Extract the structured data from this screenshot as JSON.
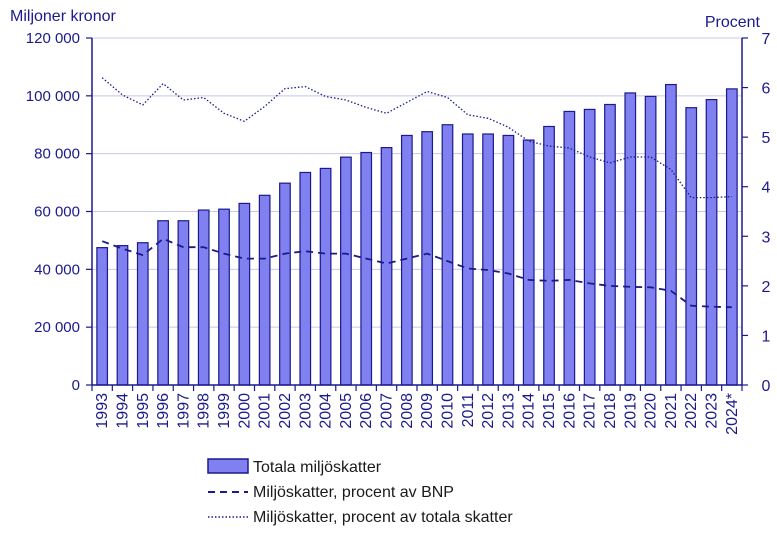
{
  "chart_data": {
    "type": "bar",
    "left_axis_title": "Miljoner kronor",
    "right_axis_title": "Procent",
    "categories": [
      "1993",
      "1994",
      "1995",
      "1996",
      "1997",
      "1998",
      "1999",
      "2000",
      "2001",
      "2002",
      "2003",
      "2004",
      "2005",
      "2006",
      "2007",
      "2008",
      "2009",
      "2010",
      "2011",
      "2012",
      "2013",
      "2014",
      "2015",
      "2016",
      "2017",
      "2018",
      "2019",
      "2020",
      "2021",
      "2022",
      "2023",
      "2024*"
    ],
    "y_left": {
      "min": 0,
      "max": 120000,
      "ticks": [
        0,
        20000,
        40000,
        60000,
        80000,
        100000,
        120000
      ],
      "tick_labels": [
        "0",
        "20 000",
        "40 000",
        "60 000",
        "80 000",
        "100 000",
        "120 000"
      ]
    },
    "y_right": {
      "min": 0,
      "max": 7,
      "ticks": [
        0,
        1,
        2,
        3,
        4,
        5,
        6,
        7
      ],
      "tick_labels": [
        "0",
        "1",
        "2",
        "3",
        "4",
        "5",
        "6",
        "7"
      ]
    },
    "grid": true,
    "legend_position": "bottom",
    "series": [
      {
        "name": "Totala miljöskatter",
        "kind": "bar",
        "axis": "left",
        "color": "#8080f0",
        "stroke": "#1a1a8c",
        "values": [
          47500,
          48200,
          49200,
          56800,
          56800,
          60500,
          60800,
          62800,
          65600,
          69800,
          73500,
          74900,
          78800,
          80400,
          82100,
          86300,
          87600,
          90000,
          86800,
          86800,
          86300,
          84700,
          89400,
          94600,
          95300,
          97000,
          101000,
          99800,
          103900,
          95900,
          98700,
          102400
        ]
      },
      {
        "name": "Miljöskatter, procent av BNP",
        "kind": "line",
        "style": "dashed",
        "axis": "right",
        "color": "#1a1a8c",
        "values": [
          2.9,
          2.75,
          2.62,
          2.95,
          2.78,
          2.78,
          2.65,
          2.55,
          2.55,
          2.65,
          2.7,
          2.65,
          2.65,
          2.55,
          2.45,
          2.55,
          2.65,
          2.5,
          2.35,
          2.32,
          2.25,
          2.12,
          2.1,
          2.12,
          2.05,
          2.0,
          1.98,
          1.97,
          1.9,
          1.6,
          1.58,
          1.57
        ]
      },
      {
        "name": "Miljöskatter, procent av totala skatter",
        "kind": "line",
        "style": "dotted",
        "axis": "right",
        "color": "#1a1a8c",
        "values": [
          6.2,
          5.85,
          5.65,
          6.08,
          5.75,
          5.8,
          5.48,
          5.32,
          5.62,
          5.98,
          6.02,
          5.82,
          5.75,
          5.6,
          5.48,
          5.7,
          5.92,
          5.8,
          5.45,
          5.38,
          5.2,
          4.92,
          4.82,
          4.78,
          4.6,
          4.48,
          4.6,
          4.6,
          4.35,
          3.78,
          3.78,
          3.8
        ]
      }
    ]
  }
}
